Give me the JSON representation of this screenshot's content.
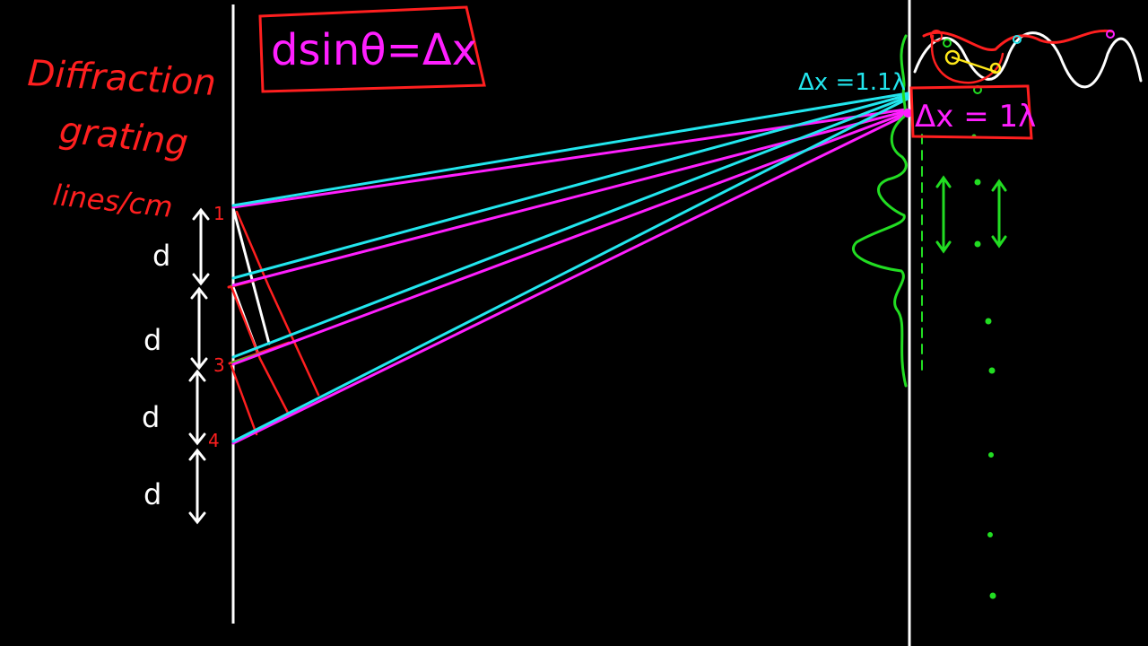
{
  "colors": {
    "background": "#000000",
    "chalk_white": "#ffffff",
    "red": "#ff1f1f",
    "magenta": "#ff1fff",
    "cyan": "#22e6ee",
    "green": "#22dd22",
    "yellow": "#ffe81a"
  },
  "labels": {
    "diffraction": "Diffraction",
    "grating": "grating",
    "lines_per_cm": "lines/cm",
    "formula": "dsinθ=Δx",
    "delta_cyan": "Δx =1.1λ",
    "delta_magenta": "Δx = 1λ"
  },
  "slits": [
    {
      "label": "1"
    },
    {
      "label": ""
    },
    {
      "label": "3"
    },
    {
      "label": "4"
    }
  ],
  "spacing_labels": [
    "d",
    "d",
    "d",
    "d"
  ]
}
